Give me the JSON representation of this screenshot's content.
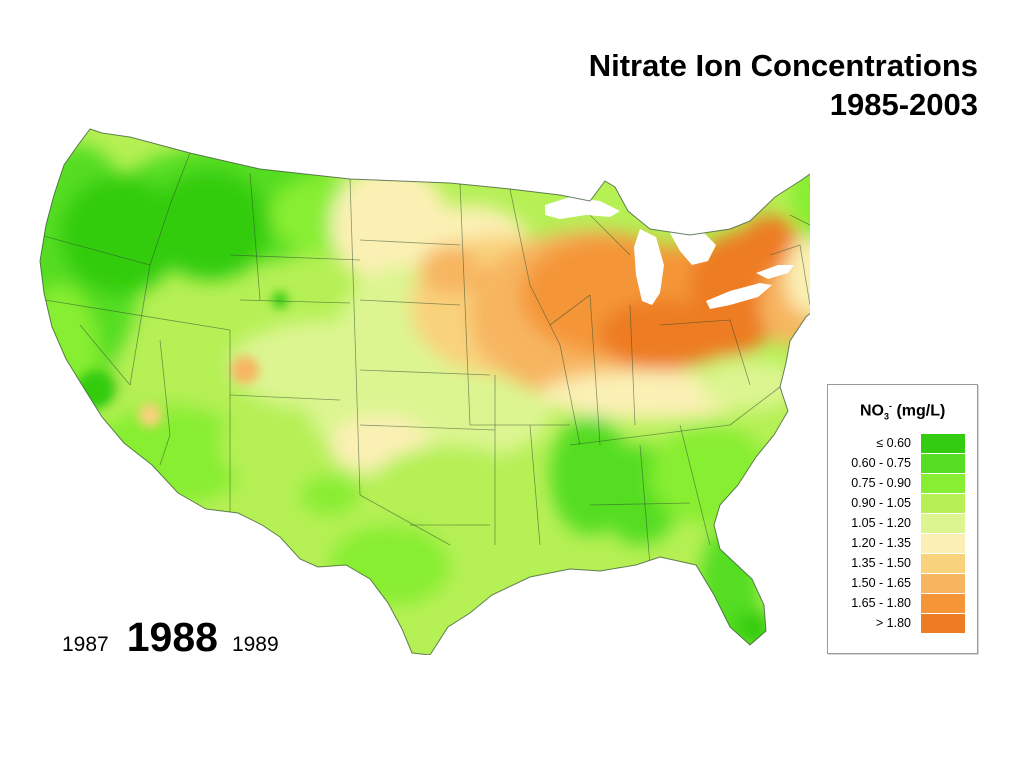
{
  "title": {
    "line1": "Nitrate Ion Concentrations",
    "line2": "1985-2003"
  },
  "years": {
    "previous": "1987",
    "current": "1988",
    "next": "1989"
  },
  "legend": {
    "title_ion": "NO",
    "title_sub": "3",
    "title_sup": "-",
    "title_unit": "(mg/L)",
    "items": [
      {
        "label": "≤ 0.60",
        "color": "#33cc11"
      },
      {
        "label": "0.60 - 0.75",
        "color": "#55dd22"
      },
      {
        "label": "0.75 - 0.90",
        "color": "#88ee33"
      },
      {
        "label": "0.90 - 1.05",
        "color": "#b5f055"
      },
      {
        "label": "1.05 - 1.20",
        "color": "#dcf591"
      },
      {
        "label": "1.20 - 1.35",
        "color": "#fbf0b4"
      },
      {
        "label": "1.35 - 1.50",
        "color": "#f9d27c"
      },
      {
        "label": "1.50 - 1.65",
        "color": "#f7b560"
      },
      {
        "label": "1.65 - 1.80",
        "color": "#f49638"
      },
      {
        "label": "> 1.80",
        "color": "#ee7c24"
      }
    ]
  }
}
